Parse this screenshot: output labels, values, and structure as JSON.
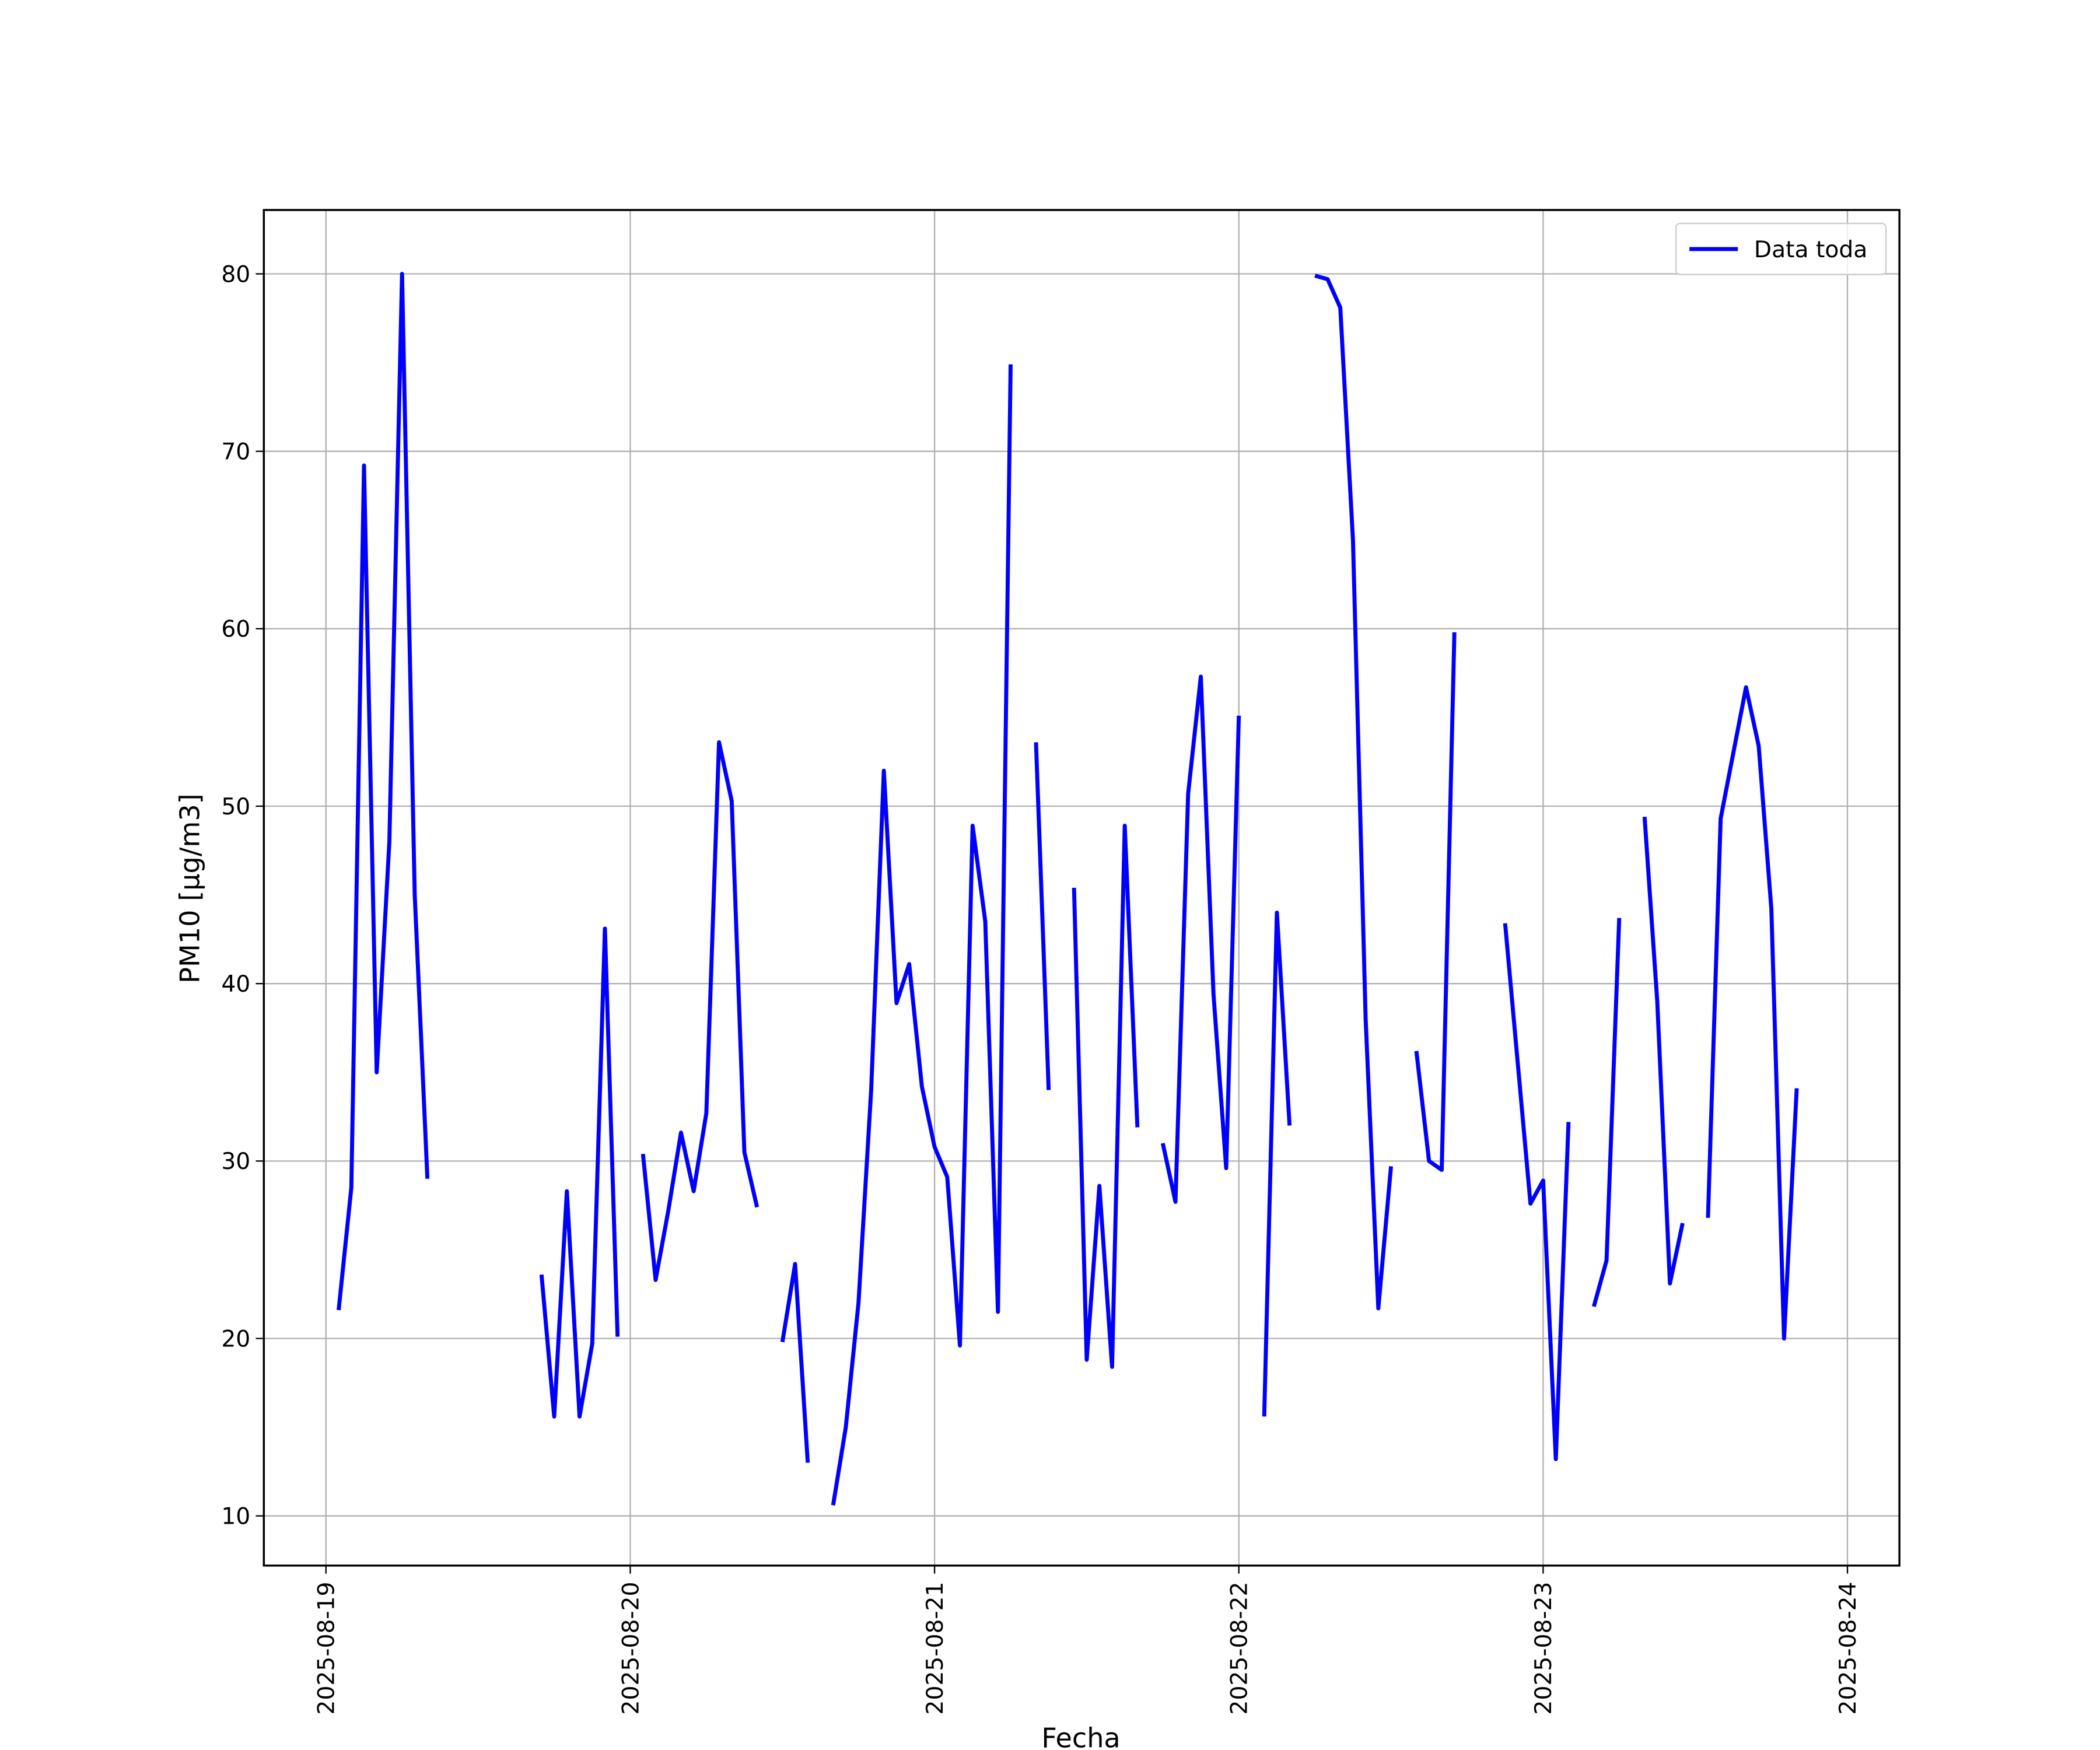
{
  "chart_data": {
    "type": "line",
    "xlabel": "Fecha",
    "ylabel": "PM10 [μg/m3]",
    "x": [
      1,
      2,
      3,
      4,
      5,
      6,
      7,
      8,
      9,
      10,
      11,
      12,
      13,
      14,
      15,
      16,
      17,
      18,
      19,
      20,
      21,
      22,
      23,
      24,
      25,
      26,
      27,
      28,
      29,
      30,
      31,
      32,
      33,
      34,
      35,
      36,
      37,
      38,
      39,
      40,
      41,
      42,
      43,
      44,
      45,
      46,
      47,
      48,
      49,
      50,
      51,
      52,
      53,
      54,
      55,
      56,
      57,
      58,
      59,
      60,
      61,
      62,
      63,
      64,
      65,
      66,
      67,
      68,
      69,
      70,
      71,
      72,
      73,
      74,
      75,
      76,
      77,
      78,
      79,
      80,
      81,
      82,
      83,
      84,
      85,
      86,
      87,
      88,
      89,
      90,
      91,
      92,
      93,
      94,
      95,
      96,
      97,
      98,
      99,
      100,
      101,
      102,
      103,
      104,
      105,
      106,
      107,
      108,
      109,
      110,
      111,
      112,
      113,
      114,
      115,
      116
    ],
    "series": [
      {
        "name": "Data toda",
        "color": "#0000ff",
        "values": [
          21.6,
          28.5,
          69.2,
          35,
          48,
          80,
          45,
          29,
          null,
          null,
          null,
          null,
          null,
          null,
          null,
          null,
          23.6,
          15.6,
          28.3,
          15.6,
          19.7,
          43.1,
          20.1,
          null,
          30.4,
          23.3,
          27.2,
          31.6,
          28.3,
          32.7,
          53.6,
          50.3,
          30.5,
          27.4,
          null,
          19.8,
          24.2,
          13,
          null,
          10.6,
          15,
          22,
          34,
          52,
          38.9,
          41.1,
          34.2,
          30.8,
          29.1,
          19.6,
          48.9,
          43.5,
          21.5,
          74.9,
          null,
          53.6,
          34,
          null,
          45.4,
          18.8,
          28.6,
          18.4,
          48.9,
          31.9,
          null,
          31,
          27.7,
          50.7,
          57.3,
          39.4,
          29.6,
          55.1,
          null,
          15.6,
          44,
          32,
          null,
          79.9,
          79.7,
          78.1,
          65,
          38,
          21.7,
          29.7,
          null,
          36.2,
          30,
          29.5,
          59.8,
          null,
          null,
          null,
          43.4,
          35.5,
          27.6,
          28.9,
          13.2,
          32.2,
          null,
          21.8,
          24.4,
          43.7,
          null,
          49.4,
          39,
          23.1,
          26.5,
          null,
          26.8,
          49.3,
          53,
          56.7,
          53.4,
          44.2,
          20,
          34.1
        ]
      }
    ],
    "xlim": [
      -4.9,
      124.1
    ],
    "xticks": [
      {
        "value": 0,
        "label": "2025-08-19"
      },
      {
        "value": 24,
        "label": "2025-08-20"
      },
      {
        "value": 48,
        "label": "2025-08-21"
      },
      {
        "value": 72,
        "label": "2025-08-22"
      },
      {
        "value": 96,
        "label": "2025-08-23"
      },
      {
        "value": 120,
        "label": "2025-08-24"
      }
    ],
    "ylim": [
      7.2,
      83.6
    ],
    "yticks": [
      10,
      20,
      30,
      40,
      50,
      60,
      70,
      80
    ],
    "grid": true,
    "legend": "upper right"
  }
}
